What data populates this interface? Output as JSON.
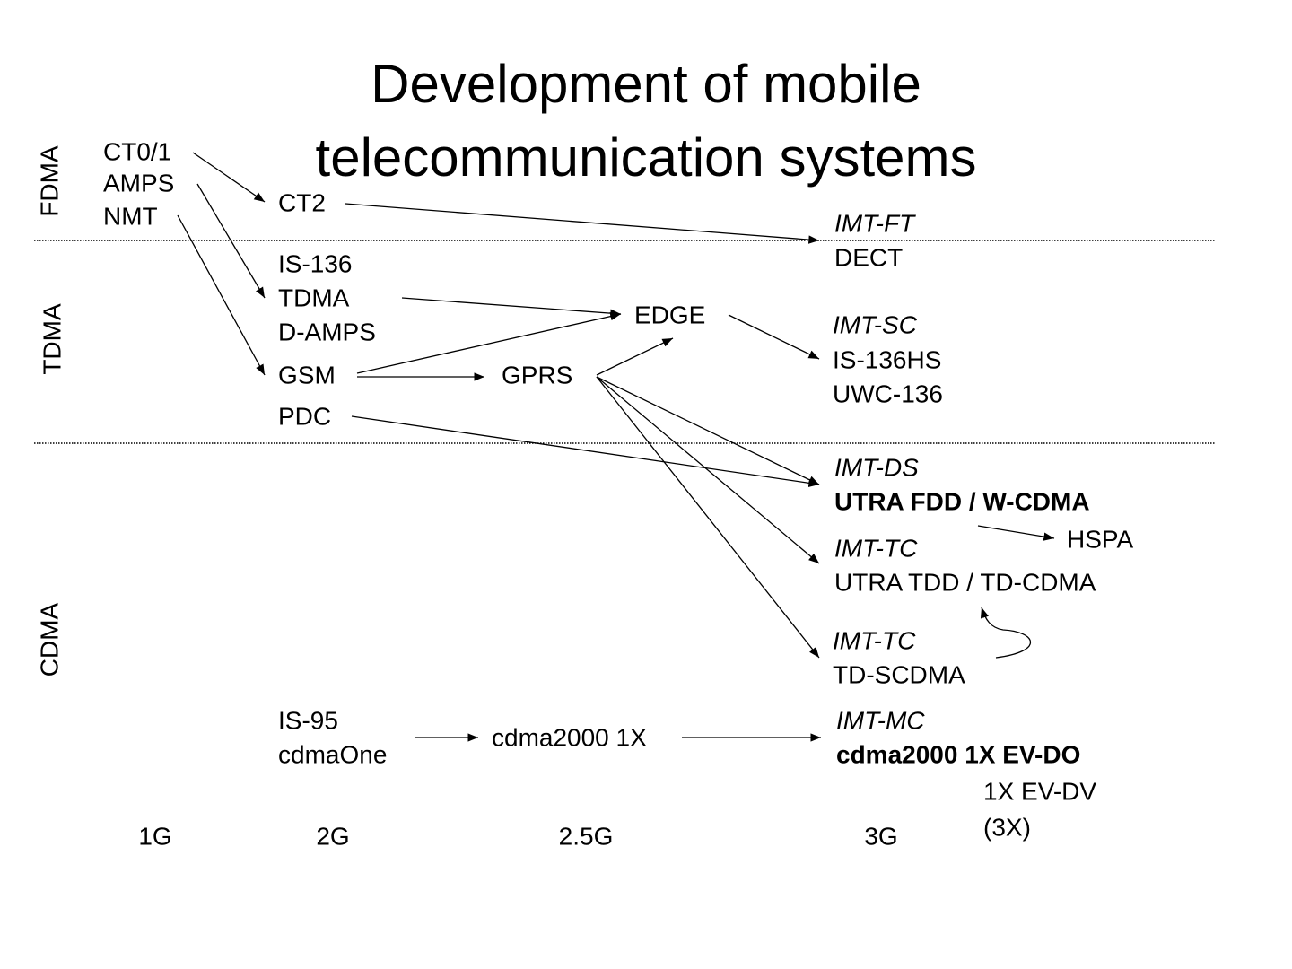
{
  "title": [
    "Development of mobile",
    "telecommunication systems"
  ],
  "rows": [
    "FDMA",
    "TDMA",
    "CDMA"
  ],
  "generations": [
    "1G",
    "2G",
    "2.5G",
    "3G"
  ],
  "nodes": [
    [
      "CT0/1",
      "AMPS",
      "NMT"
    ],
    [
      "CT2"
    ],
    [
      "IMT-FT",
      "DECT"
    ],
    [
      "IS-136",
      "TDMA",
      "D-AMPS"
    ],
    [
      "GSM"
    ],
    [
      "PDC"
    ],
    [
      "EDGE"
    ],
    [
      "GPRS"
    ],
    [
      "IMT-SC",
      "IS-136HS",
      "UWC-136"
    ],
    [
      "IMT-DS",
      "UTRA FDD / W-CDMA"
    ],
    [
      "HSPA"
    ],
    [
      "IMT-TC",
      "UTRA TDD / TD-CDMA"
    ],
    [
      "IMT-TC",
      "TD-SCDMA"
    ],
    [
      "IS-95",
      "cdmaOne"
    ],
    [
      "cdma2000 1X"
    ],
    [
      "IMT-MC",
      "cdma2000 1X EV-DO"
    ],
    [
      "1X EV-DV",
      "(3X)"
    ]
  ]
}
